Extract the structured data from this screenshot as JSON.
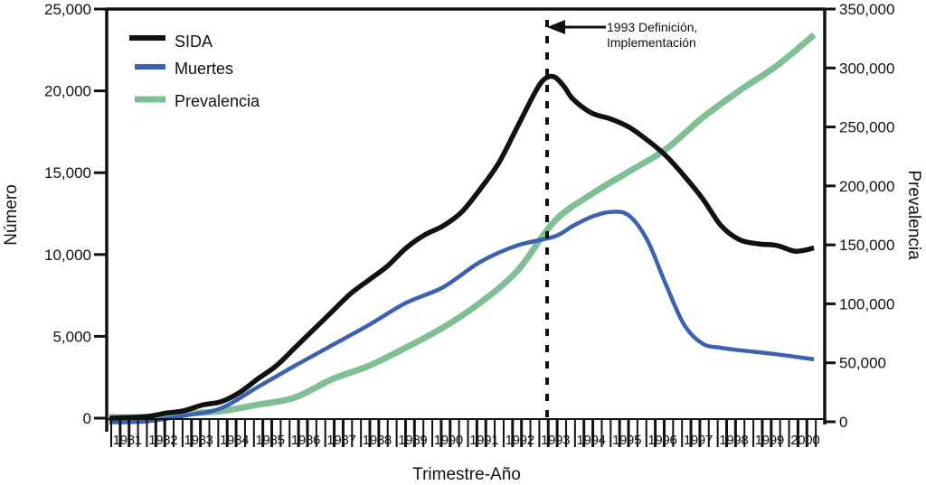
{
  "chart_data": {
    "type": "line",
    "title": "",
    "xlabel": "Trimestre-Año",
    "ylabel": "Número",
    "y2label": "Prevalencia",
    "xlim": [
      1981,
      2000
    ],
    "ylim": [
      0,
      25000
    ],
    "y2lim": [
      0,
      350000
    ],
    "grid": false,
    "legend_position": "top-left",
    "x_tick_labels": [
      "1981",
      "1982",
      "1983",
      "1984",
      "1985",
      "1986",
      "1987",
      "1988",
      "1989",
      "1990",
      "1991",
      "1992",
      "1993",
      "1994",
      "1995",
      "1996",
      "1997",
      "1998",
      "1999",
      "2000"
    ],
    "y_tick_labels": [
      "0",
      "5,000",
      "10,000",
      "15,000",
      "20,000",
      "25,000"
    ],
    "y_tick_values": [
      0,
      5000,
      10000,
      15000,
      20000,
      25000
    ],
    "y2_tick_labels": [
      "0",
      "50,000",
      "100,000",
      "150,000",
      "200,000",
      "250,000",
      "300,000",
      "350,000"
    ],
    "y2_tick_values": [
      0,
      50000,
      100000,
      150000,
      200000,
      250000,
      300000,
      350000
    ],
    "annotation": {
      "x": 1993,
      "line1": "1993 Definición,",
      "line2": "Implementación"
    },
    "series": [
      {
        "name": "SIDA",
        "axis": "left",
        "color": "#111111",
        "x": [
          1981,
          1982,
          1982.5,
          1983,
          1983.5,
          1984,
          1984.5,
          1985,
          1985.5,
          1986,
          1986.5,
          1987,
          1987.5,
          1988,
          1988.5,
          1989,
          1989.5,
          1990,
          1990.5,
          1991,
          1991.5,
          1992,
          1992.5,
          1992.75,
          1993,
          1993.25,
          1993.5,
          1994,
          1994.5,
          1995,
          1995.5,
          1996,
          1996.5,
          1997,
          1997.5,
          1998,
          1998.5,
          1999,
          1999.5,
          2000
        ],
        "values": [
          0,
          100,
          300,
          450,
          800,
          1000,
          1550,
          2400,
          3200,
          4300,
          5400,
          6500,
          7600,
          8450,
          9300,
          10400,
          11200,
          11750,
          12600,
          14000,
          15600,
          17800,
          20000,
          20750,
          20850,
          20300,
          19500,
          18650,
          18300,
          17800,
          17000,
          16050,
          14800,
          13400,
          11750,
          10900,
          10650,
          10550,
          10200,
          10400
        ]
      },
      {
        "name": "Muertes",
        "axis": "left",
        "color": "#3a62b0",
        "x": [
          1981,
          1982,
          1983,
          1984,
          1985,
          1986,
          1987,
          1988,
          1989,
          1990,
          1991,
          1992,
          1993,
          1993.5,
          1994,
          1994.5,
          1995,
          1995.5,
          1996,
          1996.5,
          1997,
          1997.5,
          1998,
          1999,
          2000
        ],
        "values": [
          -250,
          -200,
          150,
          600,
          1900,
          3200,
          4450,
          5700,
          7050,
          8000,
          9550,
          10550,
          11100,
          11750,
          12300,
          12600,
          12400,
          10900,
          8200,
          5700,
          4550,
          4300,
          4150,
          3900,
          3600
        ]
      },
      {
        "name": "Prevalencia",
        "axis": "right",
        "color": "#7fbf94",
        "x": [
          1981,
          1982,
          1983,
          1984,
          1985,
          1986,
          1987,
          1988,
          1989,
          1990,
          1991,
          1992,
          1993,
          1994,
          1995,
          1996,
          1997,
          1998,
          1999,
          2000
        ],
        "values": [
          4000,
          4000,
          7000,
          9000,
          14500,
          20500,
          36000,
          47500,
          63000,
          80000,
          101000,
          128000,
          170000,
          193000,
          212000,
          231000,
          258000,
          281000,
          302000,
          328000
        ]
      }
    ]
  }
}
